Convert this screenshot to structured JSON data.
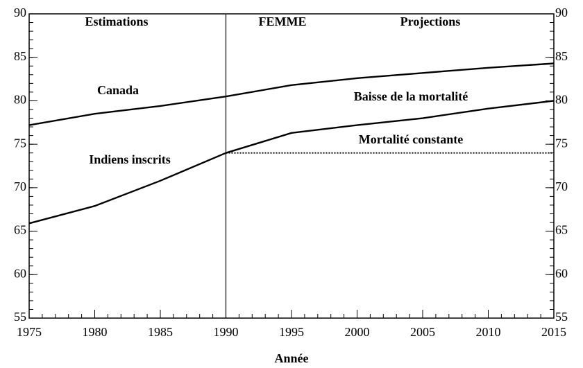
{
  "chart_data": {
    "type": "line",
    "annotations": [
      "Estimations",
      "FEMME",
      "Projections"
    ],
    "xlabel": "Année",
    "x": [
      1975,
      1980,
      1985,
      1990,
      1995,
      2000,
      2005,
      2010,
      2015
    ],
    "series": [
      {
        "name": "Canada",
        "color": "#000000",
        "values": [
          77.2,
          78.5,
          79.4,
          80.5,
          81.8,
          82.6,
          83.2,
          83.8,
          84.3
        ]
      },
      {
        "name": "Indiens inscrits",
        "color": "#000000",
        "values": [
          65.9,
          67.9,
          70.8,
          74.0,
          null,
          null,
          null,
          null,
          null
        ]
      },
      {
        "name": "Baisse de la mortalité",
        "color": "#000000",
        "values": [
          null,
          null,
          null,
          74.0,
          76.3,
          77.2,
          78.0,
          79.1,
          80.0
        ]
      },
      {
        "name": "Mortalité constante",
        "color": "#000000",
        "dashed": true,
        "values": [
          null,
          null,
          null,
          74.0,
          74.0,
          74.0,
          74.0,
          74.0,
          74.0
        ]
      }
    ],
    "divider": 1990,
    "xlim": [
      1975,
      2015
    ],
    "xticks": [
      1975,
      1980,
      1985,
      1990,
      1995,
      2000,
      2005,
      2010,
      2015
    ],
    "ylim": [
      55,
      90
    ],
    "yticks": [
      55,
      60,
      65,
      70,
      75,
      80,
      85,
      90
    ],
    "x_minor_step": 1,
    "y_minor_step": 1,
    "right_axis": true
  }
}
